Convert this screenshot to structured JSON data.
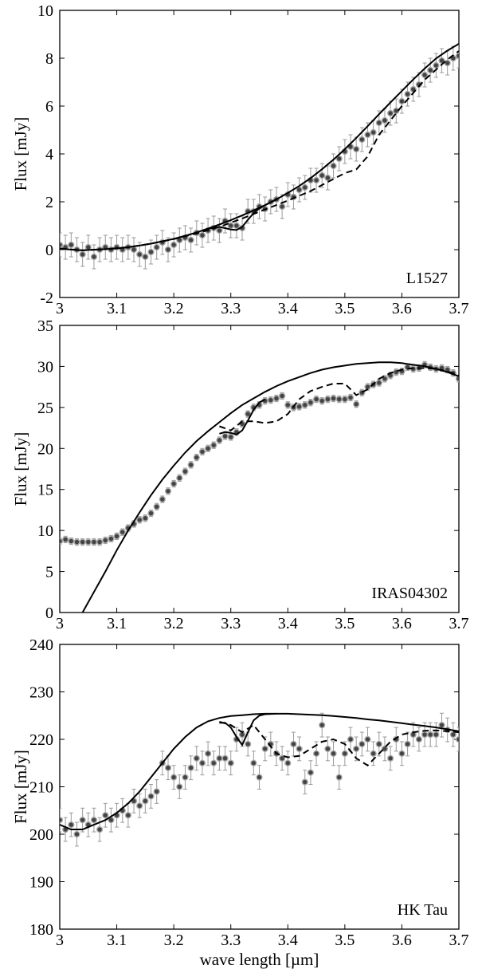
{
  "chart_data": [
    {
      "type": "scatter",
      "label": "L1527",
      "xlabel": "",
      "ylabel": "Flux [mJy]",
      "xlim": [
        3.0,
        3.7
      ],
      "ylim": [
        -2,
        10
      ],
      "xticks": [
        "3",
        "3.1",
        "3.2",
        "3.3",
        "3.4",
        "3.5",
        "3.6",
        "3.7"
      ],
      "yticks": [
        "-2",
        "0",
        "2",
        "4",
        "6",
        "8",
        "10"
      ],
      "observed": {
        "x": [
          3.0,
          3.01,
          3.02,
          3.03,
          3.04,
          3.05,
          3.06,
          3.07,
          3.08,
          3.09,
          3.1,
          3.11,
          3.12,
          3.13,
          3.14,
          3.15,
          3.16,
          3.17,
          3.18,
          3.19,
          3.2,
          3.21,
          3.22,
          3.23,
          3.24,
          3.25,
          3.26,
          3.27,
          3.28,
          3.29,
          3.3,
          3.31,
          3.32,
          3.33,
          3.34,
          3.35,
          3.36,
          3.37,
          3.38,
          3.39,
          3.4,
          3.41,
          3.42,
          3.43,
          3.44,
          3.45,
          3.46,
          3.47,
          3.48,
          3.49,
          3.5,
          3.51,
          3.52,
          3.53,
          3.54,
          3.55,
          3.56,
          3.57,
          3.58,
          3.59,
          3.6,
          3.61,
          3.62,
          3.63,
          3.64,
          3.65,
          3.66,
          3.67,
          3.68,
          3.69,
          3.7
        ],
        "y": [
          0.2,
          0.1,
          0.2,
          0.0,
          -0.2,
          0.1,
          -0.3,
          0.0,
          0.1,
          0.0,
          0.1,
          0.0,
          0.1,
          0.0,
          -0.2,
          -0.3,
          -0.1,
          0.1,
          0.3,
          0.0,
          0.2,
          0.4,
          0.5,
          0.4,
          0.7,
          0.6,
          0.8,
          0.9,
          0.8,
          1.2,
          1.0,
          1.0,
          0.9,
          1.6,
          1.6,
          1.8,
          1.7,
          2.0,
          2.1,
          1.8,
          2.3,
          2.2,
          2.5,
          2.6,
          2.9,
          2.9,
          3.1,
          3.0,
          3.5,
          3.8,
          4.1,
          4.3,
          4.2,
          4.6,
          4.8,
          4.9,
          5.3,
          5.4,
          5.7,
          5.8,
          6.2,
          6.5,
          6.7,
          6.9,
          7.3,
          7.5,
          7.7,
          7.9,
          7.8,
          8.0,
          8.1
        ],
        "err": 0.5
      },
      "model_solid": {
        "x": [
          3.0,
          3.02,
          3.04,
          3.06,
          3.08,
          3.1,
          3.12,
          3.14,
          3.16,
          3.18,
          3.2,
          3.22,
          3.24,
          3.26,
          3.28,
          3.3,
          3.32,
          3.34,
          3.36,
          3.38,
          3.4,
          3.42,
          3.44,
          3.46,
          3.48,
          3.5,
          3.52,
          3.54,
          3.56,
          3.58,
          3.6,
          3.62,
          3.64,
          3.66,
          3.68,
          3.7
        ],
        "y": [
          0.05,
          0.0,
          -0.03,
          0.0,
          0.02,
          0.05,
          0.1,
          0.17,
          0.25,
          0.35,
          0.45,
          0.58,
          0.72,
          0.88,
          1.05,
          1.23,
          1.43,
          1.64,
          1.86,
          2.1,
          2.37,
          2.66,
          2.99,
          3.36,
          3.76,
          4.2,
          4.67,
          5.16,
          5.66,
          6.15,
          6.63,
          7.11,
          7.57,
          7.99,
          8.32,
          8.6
        ]
      },
      "model_absorption": {
        "x": [
          3.26,
          3.28,
          3.29,
          3.3,
          3.31,
          3.32,
          3.33,
          3.34,
          3.35,
          3.36,
          3.38
        ],
        "y": [
          0.88,
          0.95,
          0.9,
          0.84,
          0.82,
          0.95,
          1.25,
          1.52,
          1.72,
          1.86,
          2.1
        ]
      },
      "model_dashed": {
        "x": [
          3.0,
          3.04,
          3.08,
          3.12,
          3.16,
          3.2,
          3.24,
          3.28,
          3.32,
          3.36,
          3.4,
          3.44,
          3.48,
          3.5,
          3.52,
          3.54,
          3.56,
          3.6,
          3.64,
          3.68,
          3.7
        ],
        "y": [
          0.05,
          -0.03,
          0.02,
          0.1,
          0.25,
          0.44,
          0.68,
          0.95,
          1.3,
          1.68,
          2.05,
          2.45,
          2.95,
          3.2,
          3.35,
          3.9,
          4.8,
          6.0,
          7.1,
          7.95,
          8.3
        ]
      }
    },
    {
      "type": "scatter",
      "label": "IRAS04302",
      "xlabel": "",
      "ylabel": "Flux [mJy]",
      "xlim": [
        3.0,
        3.7
      ],
      "ylim": [
        0,
        35
      ],
      "xticks": [
        "3",
        "3.1",
        "3.2",
        "3.3",
        "3.4",
        "3.5",
        "3.6",
        "3.7"
      ],
      "yticks": [
        "0",
        "5",
        "10",
        "15",
        "20",
        "25",
        "30",
        "35"
      ],
      "observed": {
        "x": [
          3.0,
          3.01,
          3.02,
          3.03,
          3.04,
          3.05,
          3.06,
          3.07,
          3.08,
          3.09,
          3.1,
          3.11,
          3.12,
          3.13,
          3.14,
          3.15,
          3.16,
          3.17,
          3.18,
          3.19,
          3.2,
          3.21,
          3.22,
          3.23,
          3.24,
          3.25,
          3.26,
          3.27,
          3.28,
          3.29,
          3.3,
          3.31,
          3.32,
          3.33,
          3.34,
          3.35,
          3.36,
          3.37,
          3.38,
          3.39,
          3.4,
          3.41,
          3.42,
          3.43,
          3.44,
          3.45,
          3.46,
          3.47,
          3.48,
          3.49,
          3.5,
          3.51,
          3.52,
          3.53,
          3.54,
          3.55,
          3.56,
          3.57,
          3.58,
          3.59,
          3.6,
          3.61,
          3.62,
          3.63,
          3.64,
          3.65,
          3.66,
          3.67,
          3.68,
          3.69,
          3.7
        ],
        "y": [
          8.7,
          8.9,
          8.7,
          8.6,
          8.6,
          8.6,
          8.6,
          8.6,
          8.8,
          9.0,
          9.3,
          9.8,
          10.3,
          10.8,
          11.3,
          11.5,
          12.1,
          12.9,
          13.8,
          14.8,
          15.7,
          16.4,
          17.2,
          18.0,
          18.9,
          19.6,
          20.0,
          20.4,
          21.0,
          21.5,
          21.4,
          22.0,
          23.0,
          24.2,
          25.0,
          25.3,
          25.8,
          25.9,
          26.1,
          26.4,
          25.3,
          25.0,
          25.1,
          25.3,
          25.6,
          26.0,
          25.8,
          26.0,
          26.1,
          26.0,
          26.0,
          26.2,
          25.4,
          26.8,
          27.5,
          27.8,
          28.0,
          28.5,
          28.9,
          29.3,
          29.4,
          29.9,
          29.7,
          29.8,
          30.2,
          29.9,
          29.7,
          29.8,
          29.6,
          29.2,
          28.5
        ],
        "err": 0.4
      },
      "model_solid": {
        "x": [
          3.04,
          3.06,
          3.08,
          3.1,
          3.12,
          3.14,
          3.16,
          3.18,
          3.2,
          3.22,
          3.24,
          3.26,
          3.28,
          3.3,
          3.32,
          3.34,
          3.36,
          3.38,
          3.4,
          3.42,
          3.44,
          3.46,
          3.48,
          3.5,
          3.52,
          3.54,
          3.56,
          3.58,
          3.6,
          3.62,
          3.64,
          3.66,
          3.68,
          3.7
        ],
        "y": [
          0.0,
          2.5,
          5.0,
          7.6,
          10.0,
          12.2,
          14.3,
          16.2,
          17.9,
          19.5,
          20.9,
          22.1,
          23.2,
          24.3,
          25.3,
          26.1,
          26.9,
          27.6,
          28.2,
          28.7,
          29.2,
          29.6,
          29.9,
          30.1,
          30.3,
          30.4,
          30.5,
          30.5,
          30.4,
          30.2,
          30.0,
          29.7,
          29.3,
          28.8
        ]
      },
      "model_absorption": {
        "x": [
          3.28,
          3.29,
          3.3,
          3.31,
          3.32,
          3.33,
          3.34,
          3.35,
          3.36
        ],
        "y": [
          21.8,
          22.0,
          21.9,
          21.7,
          22.2,
          23.4,
          24.7,
          25.6,
          26.0
        ]
      },
      "model_dashed": {
        "x": [
          3.28,
          3.3,
          3.32,
          3.34,
          3.36,
          3.38,
          3.4,
          3.42,
          3.44,
          3.46,
          3.48,
          3.5,
          3.52,
          3.54,
          3.56,
          3.58,
          3.6,
          3.62,
          3.64,
          3.66,
          3.68,
          3.7
        ],
        "y": [
          22.7,
          22.2,
          23.3,
          23.3,
          23.1,
          23.3,
          24.2,
          26.0,
          27.0,
          27.5,
          27.9,
          27.9,
          26.5,
          27.2,
          28.5,
          29.2,
          29.6,
          29.8,
          29.8,
          29.7,
          29.4,
          28.9
        ]
      }
    },
    {
      "type": "scatter",
      "label": "HK Tau",
      "xlabel": "wave length [µm]",
      "ylabel": "Flux [mJy]",
      "xlim": [
        3.0,
        3.7
      ],
      "ylim": [
        180,
        240
      ],
      "xticks": [
        "3",
        "3.1",
        "3.2",
        "3.3",
        "3.4",
        "3.5",
        "3.6",
        "3.7"
      ],
      "yticks": [
        "180",
        "190",
        "200",
        "210",
        "220",
        "230",
        "240"
      ],
      "observed": {
        "x": [
          3.0,
          3.01,
          3.02,
          3.03,
          3.04,
          3.05,
          3.06,
          3.07,
          3.08,
          3.09,
          3.1,
          3.11,
          3.12,
          3.13,
          3.14,
          3.15,
          3.16,
          3.17,
          3.18,
          3.19,
          3.2,
          3.21,
          3.22,
          3.23,
          3.24,
          3.25,
          3.26,
          3.27,
          3.28,
          3.29,
          3.3,
          3.31,
          3.32,
          3.33,
          3.34,
          3.35,
          3.36,
          3.37,
          3.38,
          3.39,
          3.4,
          3.41,
          3.42,
          3.43,
          3.44,
          3.45,
          3.46,
          3.47,
          3.48,
          3.49,
          3.5,
          3.51,
          3.52,
          3.53,
          3.54,
          3.55,
          3.56,
          3.57,
          3.58,
          3.59,
          3.6,
          3.61,
          3.62,
          3.63,
          3.64,
          3.65,
          3.66,
          3.67,
          3.68,
          3.69,
          3.7
        ],
        "y": [
          203,
          201,
          202,
          200,
          203,
          202,
          203,
          201,
          204,
          203,
          204,
          205,
          204,
          207,
          206,
          207,
          208,
          209,
          215,
          214,
          212,
          210,
          212,
          214,
          216,
          215,
          217,
          215,
          216,
          216,
          215,
          220,
          221,
          219,
          215,
          212,
          218,
          219,
          217,
          216,
          215,
          219,
          218,
          211,
          213,
          217,
          223,
          218,
          217,
          212,
          217,
          220,
          218,
          219,
          220,
          217,
          219,
          218,
          216,
          220,
          217,
          219,
          221,
          220,
          221,
          221,
          221,
          223,
          222,
          221,
          220
        ],
        "err": 2.5
      },
      "model_solid": {
        "x": [
          3.0,
          3.02,
          3.04,
          3.06,
          3.08,
          3.1,
          3.12,
          3.14,
          3.16,
          3.18,
          3.2,
          3.22,
          3.24,
          3.26,
          3.28,
          3.3,
          3.32,
          3.34,
          3.36,
          3.38,
          3.4,
          3.42,
          3.44,
          3.46,
          3.48,
          3.5,
          3.52,
          3.54,
          3.56,
          3.58,
          3.6,
          3.62,
          3.64,
          3.66,
          3.68,
          3.7
        ],
        "y": [
          202,
          201,
          201,
          202,
          203,
          204.5,
          206.5,
          209,
          212,
          215,
          218,
          220.5,
          222.5,
          223.8,
          224.5,
          224.9,
          225.1,
          225.3,
          225.4,
          225.4,
          225.4,
          225.3,
          225.2,
          225.1,
          224.9,
          224.7,
          224.5,
          224.2,
          224.0,
          223.7,
          223.4,
          223.1,
          222.8,
          222.5,
          222.1,
          221.7
        ]
      },
      "model_absorption": {
        "x": [
          3.28,
          3.29,
          3.3,
          3.31,
          3.32,
          3.33,
          3.34,
          3.35,
          3.36,
          3.38
        ],
        "y": [
          223.5,
          223.5,
          222.5,
          220.5,
          218.8,
          221.5,
          224.0,
          225.0,
          225.3,
          225.4
        ]
      },
      "model_dashed": {
        "x": [
          3.28,
          3.3,
          3.32,
          3.34,
          3.36,
          3.38,
          3.4,
          3.42,
          3.44,
          3.46,
          3.48,
          3.5,
          3.52,
          3.54,
          3.56,
          3.58,
          3.6,
          3.62,
          3.64,
          3.66,
          3.68,
          3.7
        ],
        "y": [
          223.7,
          223.0,
          221.5,
          223.0,
          220.0,
          217.0,
          216.2,
          216.5,
          218.0,
          219.5,
          220.0,
          219.0,
          216.0,
          214.5,
          217.0,
          219.5,
          221.0,
          221.5,
          221.8,
          221.9,
          221.7,
          221.5
        ]
      }
    }
  ]
}
